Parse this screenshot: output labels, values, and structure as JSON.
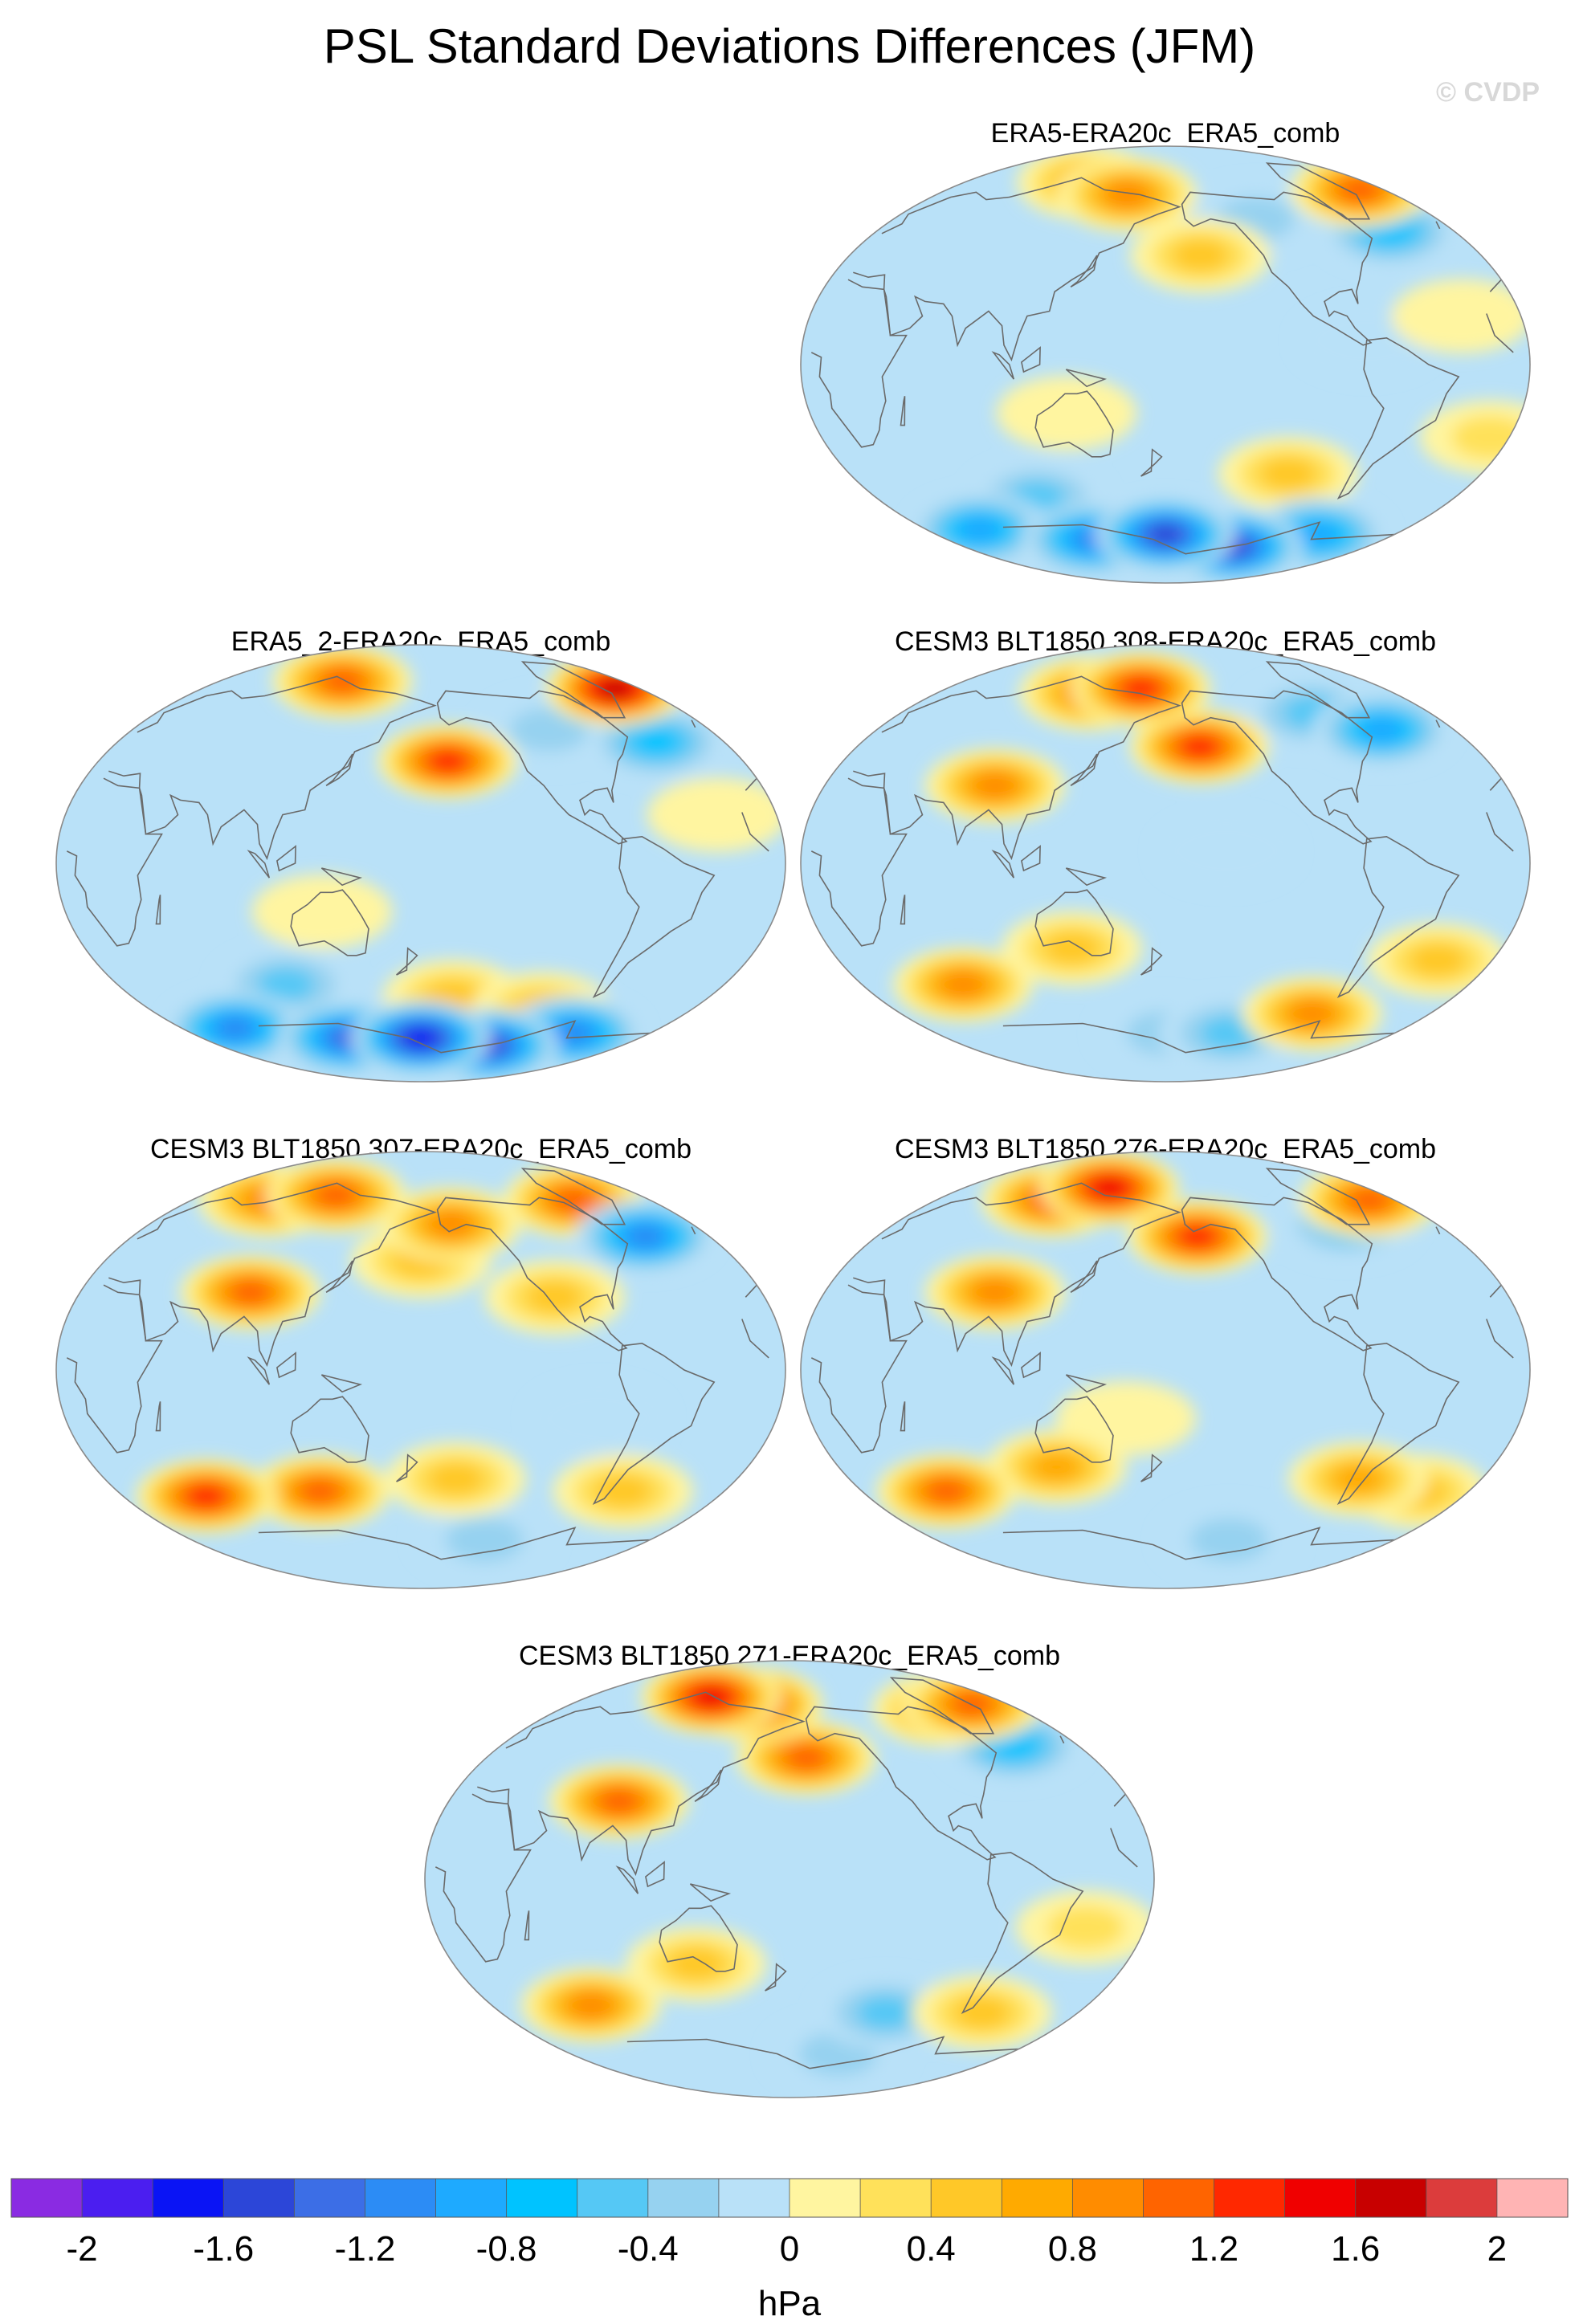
{
  "chart_data": {
    "type": "map",
    "title": "PSL Standard Deviations Differences (JFM)",
    "copyright": "© CVDP",
    "projection": "Robinson-like global, centred on the Pacific",
    "colorbar": {
      "units": "hPa",
      "levels": [
        -2.0,
        -1.8,
        -1.6,
        -1.4,
        -1.2,
        -1.0,
        -0.8,
        -0.6,
        -0.4,
        -0.2,
        0.0,
        0.2,
        0.4,
        0.6,
        0.8,
        1.0,
        1.2,
        1.4,
        1.6,
        1.8,
        2.0
      ],
      "colors": [
        "#8a2be2",
        "#4b1ef0",
        "#0a14f5",
        "#2c46d8",
        "#3c6ee6",
        "#2c8cf5",
        "#1eaaff",
        "#00c3ff",
        "#55c8f5",
        "#96d2f0",
        "#b9e1f8",
        "#fff5a0",
        "#ffe15a",
        "#ffc828",
        "#ffaa00",
        "#ff8c00",
        "#ff6400",
        "#ff2800",
        "#f00000",
        "#c80000",
        "#dc3c3c",
        "#ffb4b4"
      ],
      "tick_labels": [
        "-2",
        "-1.6",
        "-1.2",
        "-0.8",
        "-0.4",
        "0",
        "0.4",
        "0.8",
        "1.2",
        "1.6",
        "2"
      ]
    },
    "panels": [
      {
        "title": "ERA5-ERA20c_ERA5_comb",
        "features": [
          {
            "lon": 150,
            "lat": 70,
            "v": 1.0
          },
          {
            "lon": 110,
            "lat": 75,
            "v": 0.8
          },
          {
            "lon": 200,
            "lat": 45,
            "v": 0.7
          },
          {
            "lon": 340,
            "lat": 72,
            "v": 1.1
          },
          {
            "lon": 320,
            "lat": 55,
            "v": -0.8
          },
          {
            "lon": 240,
            "lat": 60,
            "v": -0.4
          },
          {
            "lon": 250,
            "lat": -45,
            "v": 0.5
          },
          {
            "lon": 350,
            "lat": -30,
            "v": 0.4
          },
          {
            "lon": 180,
            "lat": -70,
            "v": -1.6
          },
          {
            "lon": 240,
            "lat": -75,
            "v": -1.5
          },
          {
            "lon": 120,
            "lat": -72,
            "v": -1.2
          },
          {
            "lon": 300,
            "lat": -70,
            "v": -1.0
          },
          {
            "lon": 40,
            "lat": -68,
            "v": -0.9
          },
          {
            "lon": 100,
            "lat": -55,
            "v": -0.6
          },
          {
            "lon": 280,
            "lat": 10,
            "v": -0.3
          },
          {
            "lon": 330,
            "lat": 20,
            "v": 0.3
          },
          {
            "lon": 130,
            "lat": -20,
            "v": 0.3
          }
        ]
      },
      {
        "title": "ERA5_2-ERA20c_ERA5_comb",
        "features": [
          {
            "lon": 110,
            "lat": 75,
            "v": 1.2
          },
          {
            "lon": 340,
            "lat": 72,
            "v": 1.8
          },
          {
            "lon": 195,
            "lat": 42,
            "v": 1.3
          },
          {
            "lon": 320,
            "lat": 50,
            "v": -0.8
          },
          {
            "lon": 260,
            "lat": 55,
            "v": -0.4
          },
          {
            "lon": 200,
            "lat": -55,
            "v": 0.5
          },
          {
            "lon": 260,
            "lat": -60,
            "v": 0.6
          },
          {
            "lon": 180,
            "lat": -72,
            "v": -1.7
          },
          {
            "lon": 240,
            "lat": -75,
            "v": -1.6
          },
          {
            "lon": 120,
            "lat": -72,
            "v": -1.4
          },
          {
            "lon": 300,
            "lat": -70,
            "v": -1.2
          },
          {
            "lon": 40,
            "lat": -68,
            "v": -1.1
          },
          {
            "lon": 100,
            "lat": -50,
            "v": -0.5
          },
          {
            "lon": 130,
            "lat": -20,
            "v": 0.3
          },
          {
            "lon": 330,
            "lat": 20,
            "v": 0.3
          }
        ]
      },
      {
        "title": "CESM3 BLT1850 308-ERA20c_ERA5_comb",
        "features": [
          {
            "lon": 160,
            "lat": 72,
            "v": 1.4
          },
          {
            "lon": 200,
            "lat": 48,
            "v": 1.3
          },
          {
            "lon": 90,
            "lat": 32,
            "v": 1.0
          },
          {
            "lon": 120,
            "lat": 70,
            "v": 0.9
          },
          {
            "lon": 315,
            "lat": 55,
            "v": -1.0
          },
          {
            "lon": 280,
            "lat": 62,
            "v": -0.6
          },
          {
            "lon": 60,
            "lat": -50,
            "v": 1.0
          },
          {
            "lon": 130,
            "lat": -35,
            "v": 0.7
          },
          {
            "lon": 280,
            "lat": -62,
            "v": 1.0
          },
          {
            "lon": 230,
            "lat": -70,
            "v": -0.5
          },
          {
            "lon": 180,
            "lat": -70,
            "v": -0.4
          },
          {
            "lon": 330,
            "lat": -40,
            "v": 0.5
          },
          {
            "lon": 210,
            "lat": 5,
            "v": -0.3
          }
        ]
      },
      {
        "title": "CESM3 BLT1850 307-ERA20c_ERA5_comb",
        "features": [
          {
            "lon": 110,
            "lat": 72,
            "v": 1.2
          },
          {
            "lon": 60,
            "lat": 70,
            "v": 1.0
          },
          {
            "lon": 200,
            "lat": 60,
            "v": 1.0
          },
          {
            "lon": 180,
            "lat": 45,
            "v": 0.7
          },
          {
            "lon": 300,
            "lat": 70,
            "v": 1.1
          },
          {
            "lon": 320,
            "lat": 55,
            "v": -1.1
          },
          {
            "lon": 90,
            "lat": 32,
            "v": 1.1
          },
          {
            "lon": 50,
            "lat": -52,
            "v": 1.3
          },
          {
            "lon": 120,
            "lat": -50,
            "v": 1.2
          },
          {
            "lon": 200,
            "lat": -45,
            "v": 0.5
          },
          {
            "lon": 300,
            "lat": -50,
            "v": 0.6
          },
          {
            "lon": 250,
            "lat": 30,
            "v": 0.6
          },
          {
            "lon": 230,
            "lat": -70,
            "v": -0.4
          },
          {
            "lon": 270,
            "lat": -20,
            "v": -0.3
          }
        ]
      },
      {
        "title": "CESM3 BLT1850 276-ERA20c_ERA5_comb",
        "features": [
          {
            "lon": 130,
            "lat": 75,
            "v": 1.6
          },
          {
            "lon": 90,
            "lat": 70,
            "v": 1.2
          },
          {
            "lon": 200,
            "lat": 55,
            "v": 1.3
          },
          {
            "lon": 340,
            "lat": 70,
            "v": 1.1
          },
          {
            "lon": 300,
            "lat": 60,
            "v": -0.6
          },
          {
            "lon": 90,
            "lat": 32,
            "v": 1.0
          },
          {
            "lon": 50,
            "lat": -50,
            "v": 1.2
          },
          {
            "lon": 120,
            "lat": -40,
            "v": 0.8
          },
          {
            "lon": 290,
            "lat": -45,
            "v": 0.8
          },
          {
            "lon": 330,
            "lat": -50,
            "v": 0.6
          },
          {
            "lon": 230,
            "lat": -70,
            "v": -0.4
          },
          {
            "lon": 160,
            "lat": -20,
            "v": 0.3
          }
        ]
      },
      {
        "title": "CESM3 BLT1850 271-ERA20c_ERA5_comb",
        "features": [
          {
            "lon": 110,
            "lat": 75,
            "v": 1.6
          },
          {
            "lon": 150,
            "lat": 72,
            "v": 1.3
          },
          {
            "lon": 190,
            "lat": 50,
            "v": 1.2
          },
          {
            "lon": 300,
            "lat": 70,
            "v": 1.0
          },
          {
            "lon": 330,
            "lat": 72,
            "v": 1.1
          },
          {
            "lon": 320,
            "lat": 55,
            "v": -0.8
          },
          {
            "lon": 90,
            "lat": 32,
            "v": 1.2
          },
          {
            "lon": 60,
            "lat": -52,
            "v": 0.9
          },
          {
            "lon": 130,
            "lat": -35,
            "v": 0.7
          },
          {
            "lon": 240,
            "lat": -55,
            "v": -0.5
          },
          {
            "lon": 300,
            "lat": -55,
            "v": 0.5
          },
          {
            "lon": 220,
            "lat": -72,
            "v": -0.4
          },
          {
            "lon": 330,
            "lat": -20,
            "v": 0.4
          }
        ]
      }
    ]
  }
}
